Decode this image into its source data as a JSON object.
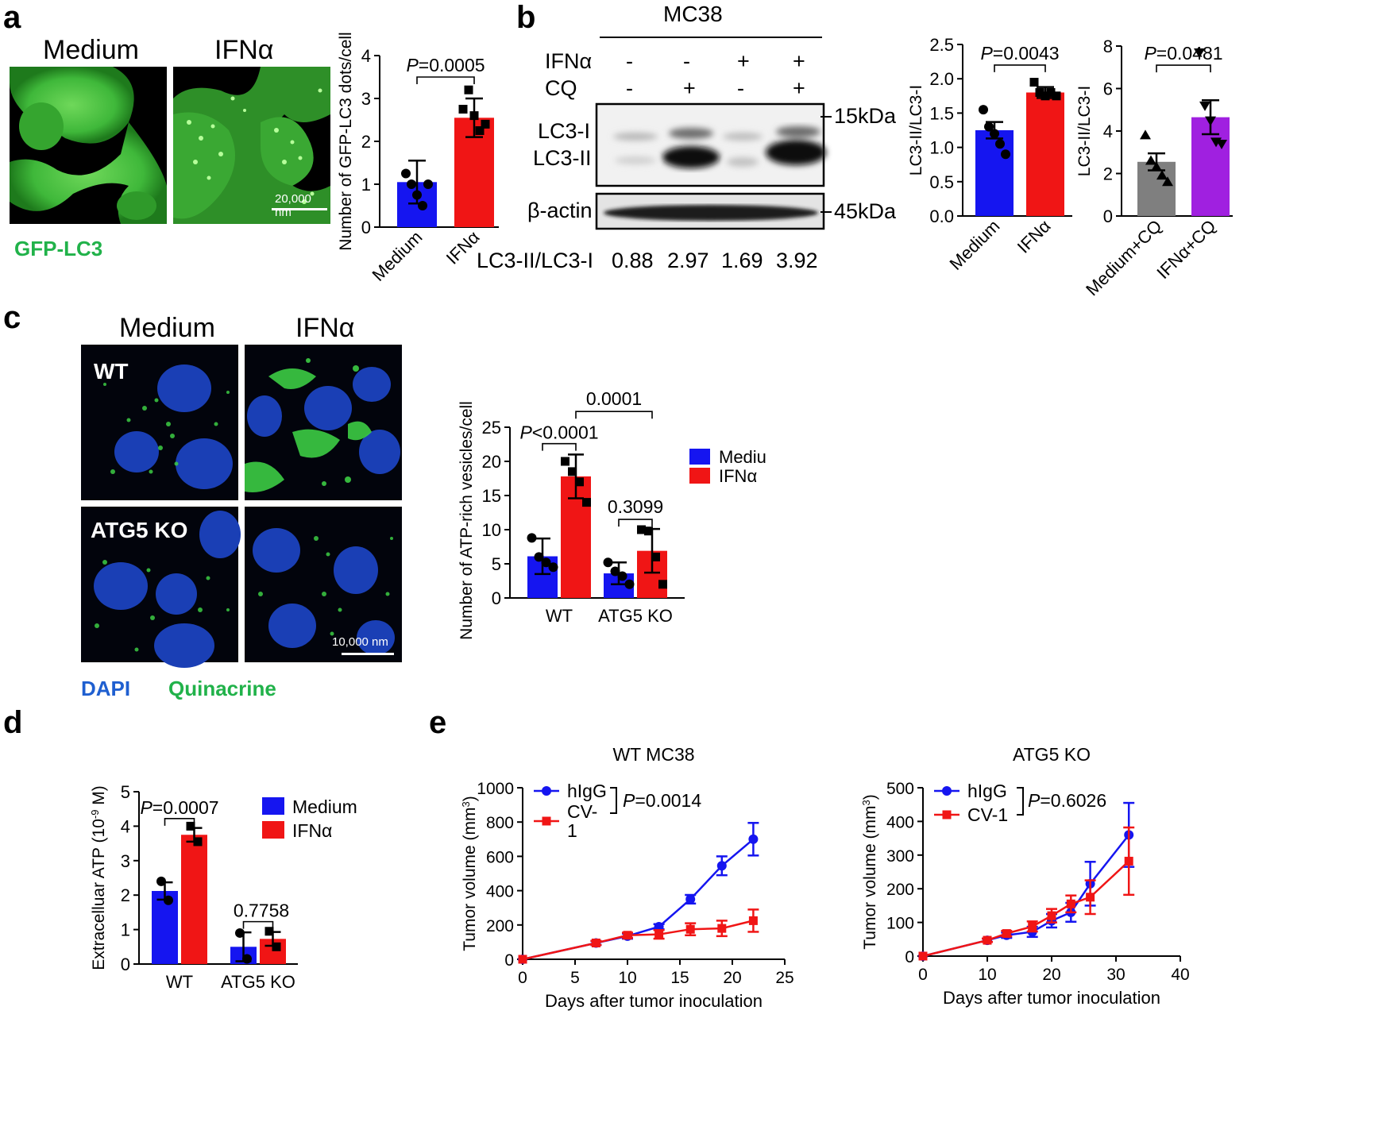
{
  "panels": {
    "a": {
      "label": "a",
      "col_titles": [
        "Medium",
        "IFNα"
      ],
      "caption": "GFP-LC3",
      "scale_bar": "20,000 nm",
      "chart_data": {
        "type": "bar",
        "categories": [
          "Medium",
          "IFNα"
        ],
        "values": [
          1.05,
          2.55
        ],
        "errors": [
          0.5,
          0.45
        ],
        "points": [
          [
            1.25,
            1.0,
            0.75,
            0.5,
            1.0
          ],
          [
            2.75,
            3.2,
            2.6,
            2.25,
            2.4
          ]
        ],
        "colors": [
          "#1515f0",
          "#f01515"
        ],
        "ylabel": "Number of GFP-LC3 dots/cell",
        "ylim": [
          0,
          4
        ],
        "yticks": [
          "0",
          "1",
          "2",
          "3",
          "4"
        ],
        "annotations": [
          {
            "p_prefix": "P",
            "p_rest": "=0.0005",
            "between": [
              0,
              1
            ]
          }
        ]
      }
    },
    "b": {
      "label": "b",
      "cell_line": "MC38",
      "row_labels": [
        "IFNα",
        "CQ"
      ],
      "ifn_signs": [
        "-",
        "-",
        "+",
        "+"
      ],
      "cq_signs": [
        "-",
        "+",
        "-",
        "+"
      ],
      "bands": [
        "LC3-I",
        "LC3-II",
        "β-actin"
      ],
      "markers": [
        "15kDa",
        "45kDa"
      ],
      "ratio_label": "LC3-II/LC3-I",
      "ratios": [
        "0.88",
        "2.97",
        "1.69",
        "3.92"
      ],
      "chart_data": [
        {
          "type": "bar",
          "categories": [
            "Medium",
            "IFNα"
          ],
          "values": [
            1.25,
            1.8
          ],
          "errors": [
            0.12,
            0.08
          ],
          "points": [
            [
              1.55,
              1.3,
              1.2,
              1.05,
              0.9
            ],
            [
              1.95,
              1.8,
              1.75,
              1.8,
              1.75
            ]
          ],
          "colors": [
            "#1515f0",
            "#f01515"
          ],
          "ylabel": "LC3-II/LC3-I",
          "ylim": [
            0,
            2.5
          ],
          "yticks": [
            "0.0",
            "0.5",
            "1.0",
            "1.5",
            "2.0",
            "2.5"
          ],
          "annotations": [
            {
              "p_prefix": "P",
              "p_rest": "=0.0043",
              "between": [
                0,
                1
              ]
            }
          ]
        },
        {
          "type": "bar",
          "categories": [
            "Medium+CQ",
            "IFNα+CQ"
          ],
          "values": [
            2.55,
            4.65
          ],
          "errors": [
            0.4,
            0.8
          ],
          "points": [
            [
              3.8,
              2.6,
              2.3,
              1.9,
              1.6
            ],
            [
              7.7,
              5.2,
              4.5,
              3.5,
              3.4
            ]
          ],
          "colors": [
            "#7f7f7f",
            "#a020e0"
          ],
          "ylabel": "LC3-II/LC3-I",
          "ylim": [
            0,
            8
          ],
          "yticks": [
            "0",
            "2",
            "4",
            "6",
            "8"
          ],
          "annotations": [
            {
              "p_prefix": "P",
              "p_rest": "=0.0481",
              "between": [
                0,
                1
              ]
            }
          ]
        }
      ]
    },
    "c": {
      "label": "c",
      "col_titles": [
        "Medium",
        "IFNα"
      ],
      "row_labels": [
        "WT",
        "ATG5 KO"
      ],
      "caption_dapi": "DAPI",
      "caption_quinacrine": "Quinacrine",
      "scale_bar": "10,000 nm",
      "chart_data": {
        "type": "bar",
        "categories": [
          "WT",
          "ATG5 KO"
        ],
        "series": [
          {
            "name": "Mediu",
            "color": "#1515f0",
            "values": [
              6.1,
              3.6
            ],
            "errors": [
              2.6,
              1.6
            ],
            "points": [
              [
                8.8,
                6.0,
                5.2,
                4.5
              ],
              [
                5.2,
                3.9,
                3.2,
                2.0
              ]
            ]
          },
          {
            "name": "IFNα",
            "color": "#f01515",
            "values": [
              17.8,
              6.9
            ],
            "errors": [
              3.2,
              3.2
            ],
            "points": [
              [
                20.0,
                18.5,
                17.0,
                14.0
              ],
              [
                10.0,
                9.8,
                6.0,
                2.0
              ]
            ]
          }
        ],
        "ylabel": "Number of ATP-rich vesicles/cell",
        "ylim": [
          0,
          25
        ],
        "yticks": [
          "0",
          "5",
          "10",
          "15",
          "20",
          "25"
        ],
        "annotations": [
          {
            "text": "P<0.0001",
            "p_prefix": "P",
            "p_rest": "<0.0001"
          },
          {
            "text": "0.0001"
          },
          {
            "text": "0.3099"
          }
        ]
      }
    },
    "d": {
      "label": "d",
      "chart_data": {
        "type": "bar",
        "categories": [
          "WT",
          "ATG5 KO"
        ],
        "series": [
          {
            "name": "Medium",
            "color": "#1515f0",
            "values": [
              2.12,
              0.5
            ],
            "errors": [
              0.25,
              0.42
            ],
            "points": [
              [
                2.4,
                1.85
              ],
              [
                0.9,
                0.15
              ]
            ]
          },
          {
            "name": "IFNα",
            "color": "#f01515",
            "values": [
              3.75,
              0.73
            ],
            "errors": [
              0.2,
              0.2
            ],
            "points": [
              [
                4.0,
                3.55
              ],
              [
                0.95,
                0.5
              ]
            ]
          }
        ],
        "ylabel_main": "Extracelluar ATP (10",
        "ylabel_sup": "-9",
        "ylabel_end": " M)",
        "ylim": [
          0,
          5
        ],
        "yticks": [
          "0",
          "1",
          "2",
          "3",
          "4",
          "5"
        ],
        "annotations": [
          {
            "p_prefix": "P",
            "p_rest": "=0.0007"
          },
          {
            "text": "0.7758"
          }
        ]
      }
    },
    "e": {
      "label": "e",
      "chart_data": [
        {
          "type": "line",
          "title": "WT MC38",
          "xlabel": "Days after tumor inoculation",
          "ylabel_main": "Tumor volume (mm",
          "ylabel_sup": "3",
          "ylabel_end": ")",
          "xlim": [
            0,
            25
          ],
          "ylim": [
            0,
            1000
          ],
          "xticks": [
            "0",
            "5",
            "10",
            "15",
            "20",
            "25"
          ],
          "yticks": [
            "0",
            "200",
            "400",
            "600",
            "800",
            "1000"
          ],
          "legend": [
            "hIgG",
            "CV-",
            "1"
          ],
          "p_prefix": "P",
          "p_rest": "=0.0014",
          "series": [
            {
              "name": "hIgG",
              "color": "#1515f0",
              "marker": "circle",
              "x": [
                0,
                7,
                10,
                13,
                16,
                19,
                22
              ],
              "y": [
                0,
                95,
                135,
                190,
                350,
                545,
                700
              ],
              "err": [
                0,
                12,
                15,
                15,
                25,
                55,
                95
              ]
            },
            {
              "name": "CV-1",
              "color": "#f01515",
              "marker": "square",
              "x": [
                0,
                7,
                10,
                13,
                16,
                19,
                22
              ],
              "y": [
                0,
                95,
                140,
                145,
                175,
                180,
                225
              ],
              "err": [
                0,
                12,
                15,
                25,
                35,
                45,
                65
              ]
            }
          ]
        },
        {
          "type": "line",
          "title": "ATG5 KO",
          "xlabel": "Days after tumor inoculation",
          "ylabel_main": "Tumor volume (mm",
          "ylabel_sup": "3",
          "ylabel_end": ")",
          "xlim": [
            0,
            40
          ],
          "ylim": [
            0,
            500
          ],
          "xticks": [
            "0",
            "10",
            "20",
            "30",
            "40"
          ],
          "yticks": [
            "0",
            "100",
            "200",
            "300",
            "400",
            "500"
          ],
          "legend": [
            "hIgG",
            "CV-1"
          ],
          "p_prefix": "P",
          "p_rest": "=0.6026",
          "series": [
            {
              "name": "hIgG",
              "color": "#1515f0",
              "marker": "circle",
              "x": [
                0,
                10,
                13,
                17,
                20,
                23,
                26,
                32
              ],
              "y": [
                0,
                47,
                62,
                72,
                105,
                130,
                215,
                360
              ],
              "err": [
                0,
                5,
                8,
                15,
                20,
                28,
                65,
                95
              ]
            },
            {
              "name": "CV-1",
              "color": "#f01515",
              "marker": "square",
              "x": [
                0,
                10,
                13,
                17,
                20,
                23,
                26,
                32
              ],
              "y": [
                0,
                47,
                67,
                88,
                120,
                155,
                175,
                282
              ],
              "err": [
                0,
                5,
                8,
                15,
                20,
                25,
                50,
                100
              ]
            }
          ]
        }
      ]
    }
  }
}
